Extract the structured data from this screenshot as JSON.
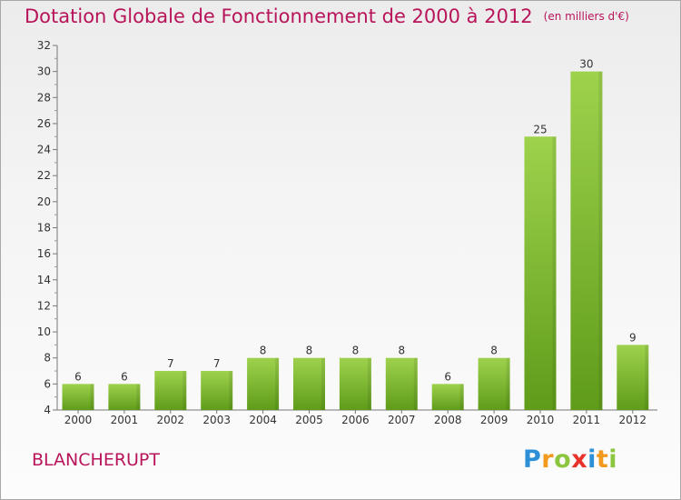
{
  "header": {
    "title": "Dotation Globale de Fonctionnement de 2000 à 2012",
    "unit": "(en milliers d'€)"
  },
  "footer": {
    "commune": "BLANCHERUPT",
    "logo_letters": [
      {
        "ch": "P",
        "color": "#2d8fd5"
      },
      {
        "ch": "r",
        "color": "#f29a1f"
      },
      {
        "ch": "o",
        "color": "#8cc63f"
      },
      {
        "ch": "x",
        "color": "#e8332a"
      },
      {
        "ch": "i",
        "color": "#2d8fd5"
      },
      {
        "ch": "t",
        "color": "#f29a1f"
      },
      {
        "ch": "i",
        "color": "#8cc63f"
      }
    ]
  },
  "chart_data": {
    "type": "bar",
    "title": "Dotation Globale de Fonctionnement de 2000 à 2012",
    "categories": [
      "2000",
      "2001",
      "2002",
      "2003",
      "2004",
      "2005",
      "2006",
      "2007",
      "2008",
      "2009",
      "2010",
      "2011",
      "2012"
    ],
    "values": [
      6,
      6,
      7,
      7,
      8,
      8,
      8,
      8,
      6,
      8,
      25,
      30,
      9
    ],
    "ylim": [
      4,
      32
    ],
    "yticks": [
      4,
      6,
      8,
      10,
      12,
      14,
      16,
      18,
      20,
      22,
      24,
      26,
      28,
      30,
      32
    ],
    "grid": false,
    "bar_color_top": "#9ed24d",
    "bar_color_bottom": "#5f9c1a"
  }
}
